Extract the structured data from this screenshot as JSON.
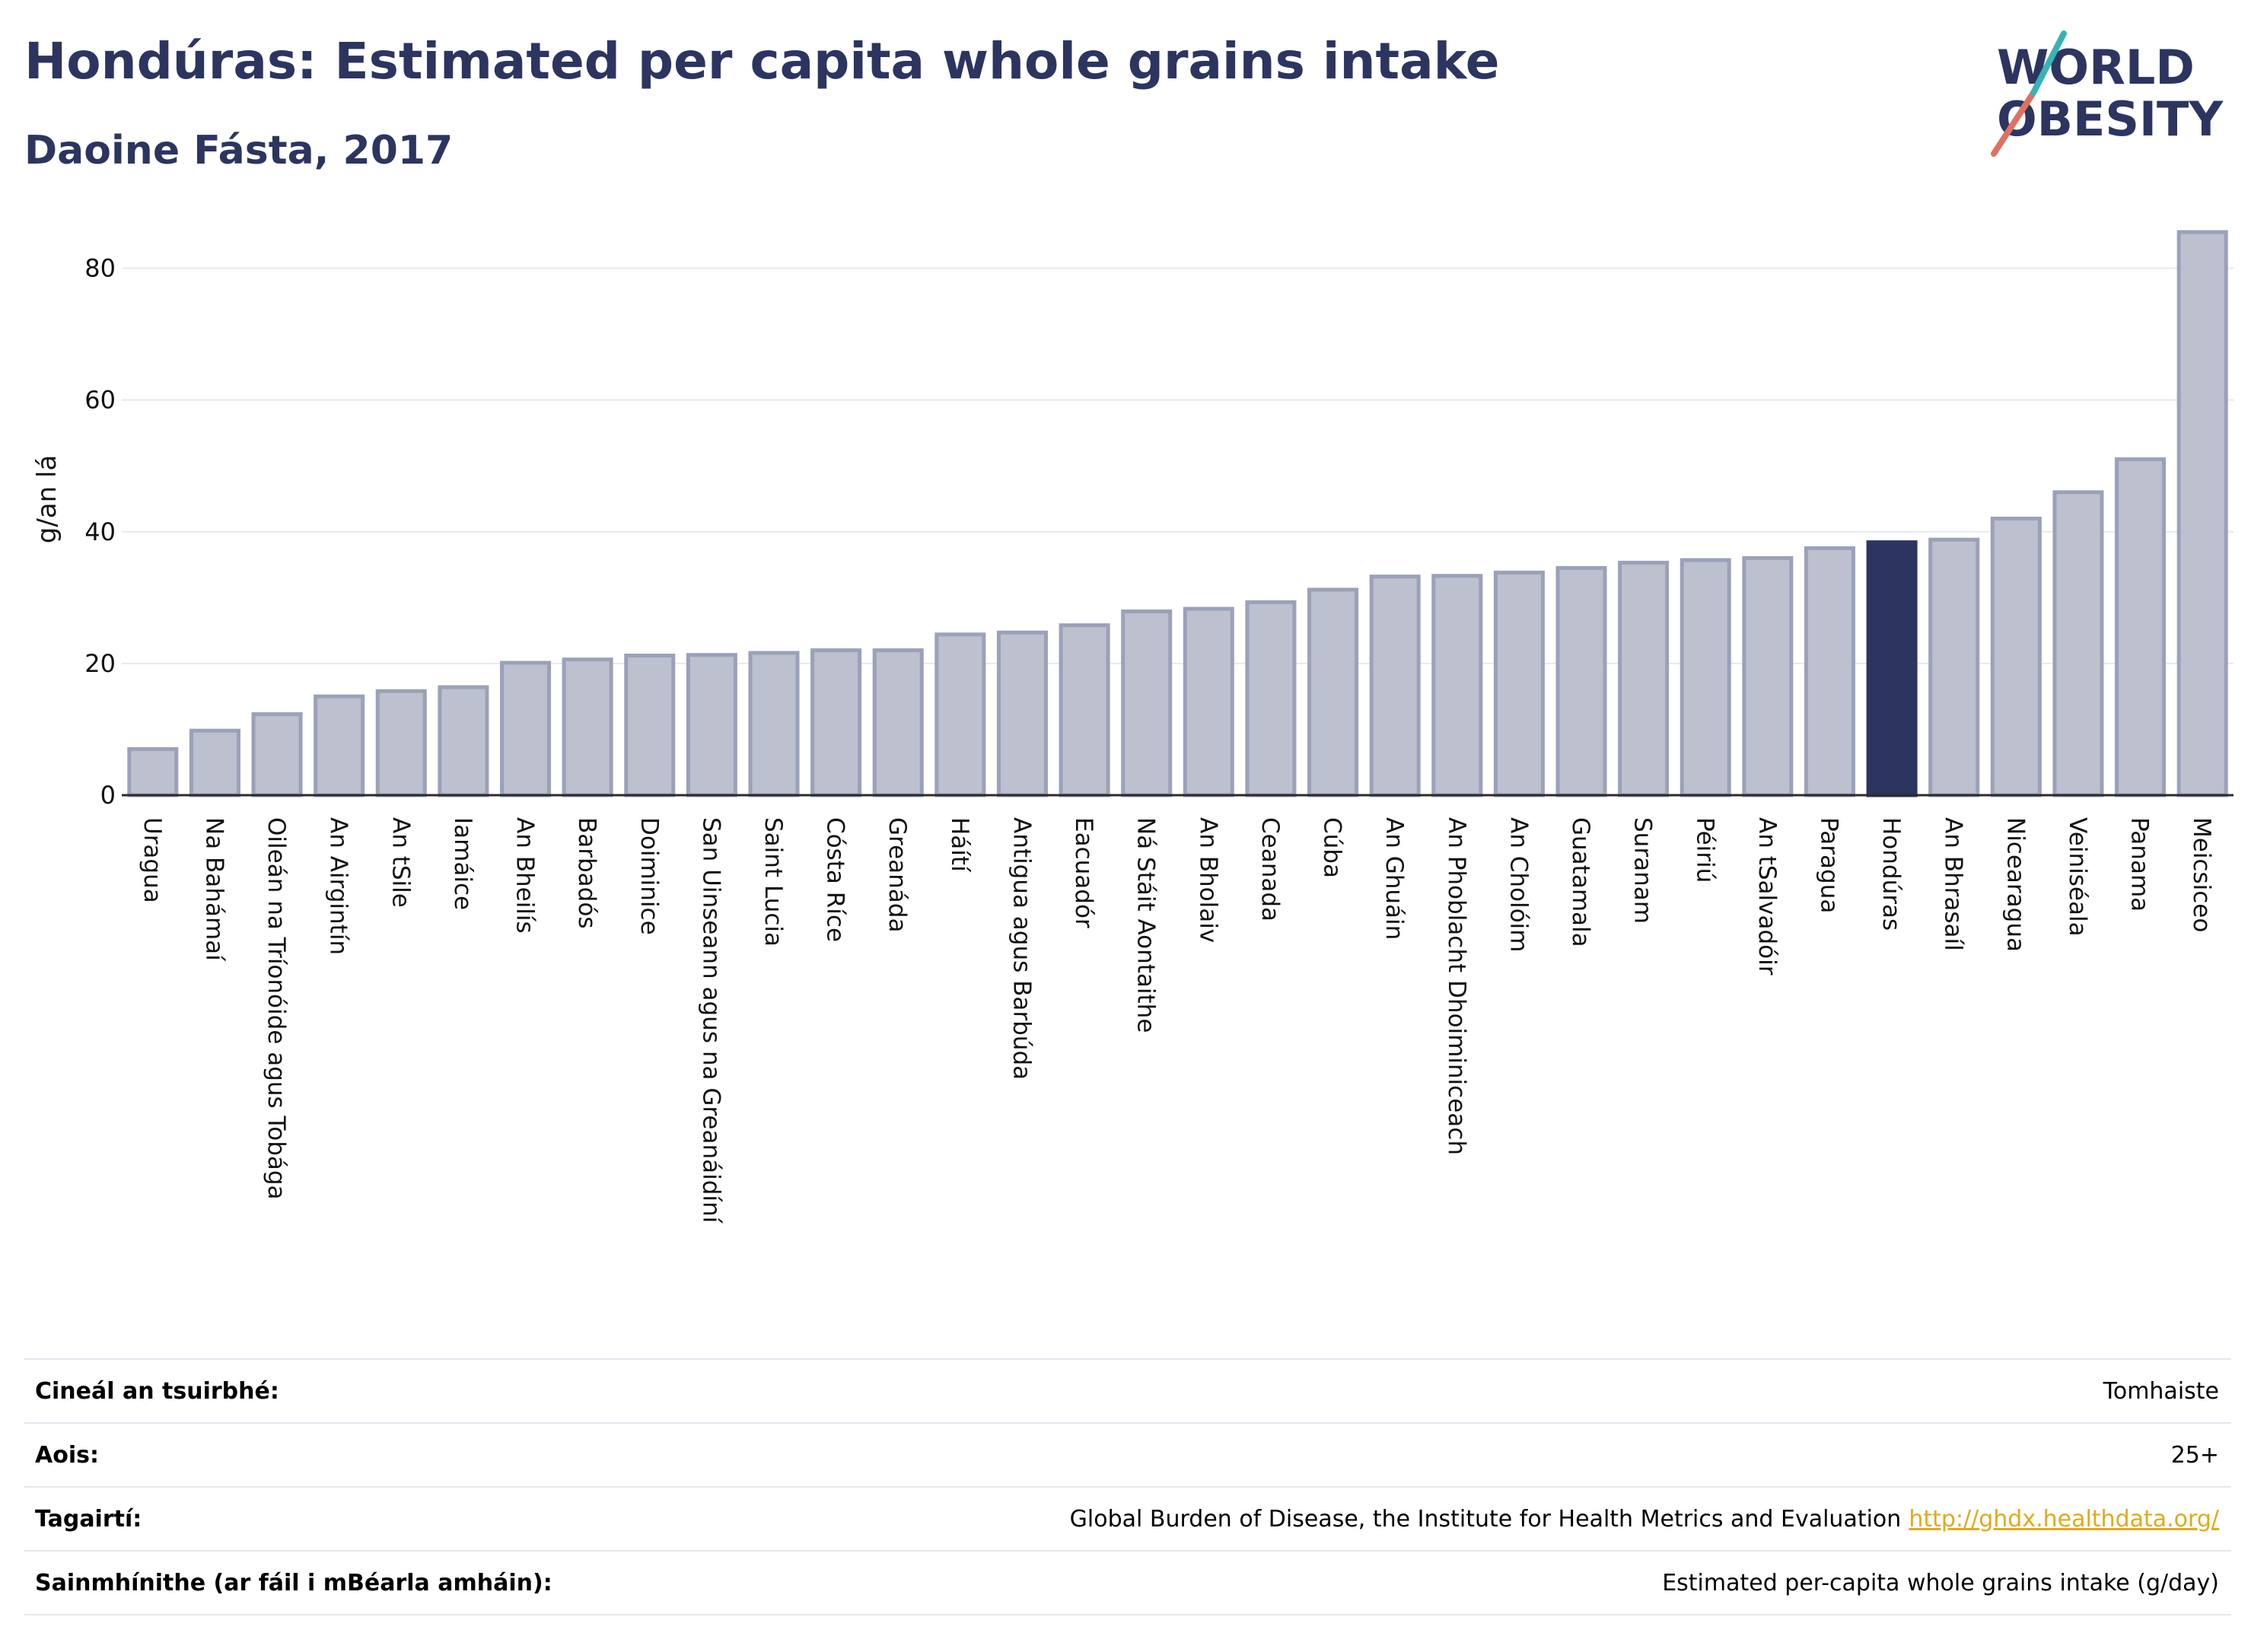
{
  "header": {
    "title": "Hondúras: Estimated per capita whole grains intake",
    "subtitle": "Daoine Fásta, 2017"
  },
  "logo": {
    "line1": "WORLD",
    "line2": "OBESITY"
  },
  "colors": {
    "bar": "#bcc0cf",
    "bar_border": "#9aa1b9",
    "highlight": "#2c3560",
    "grid": "#e6e9ef"
  },
  "chart_data": {
    "type": "bar",
    "title": "Hondúras: Estimated per capita whole grains intake",
    "subtitle": "Daoine Fásta, 2017",
    "ylabel": "g/an lá",
    "xlabel": "",
    "ylim": [
      0,
      90
    ],
    "yticks": [
      0,
      20,
      40,
      60,
      80
    ],
    "grid": true,
    "highlight": "Hondúras",
    "categories": [
      "Uragua",
      "Na Bahámaí",
      "Oileán na Tríonóide agus Tobága",
      "An Airgintín",
      "An tSile",
      "Iamáice",
      "An Bheilís",
      "Barbadós",
      "Doiminice",
      "San Uinseann agus na Greanáidíní",
      "Saint Lucia",
      "Cósta Ríce",
      "Greanáda",
      "Háítí",
      "Antigua agus Barbúda",
      "Eacuadór",
      "Ná Stáit Aontaithe",
      "An Bholaiv",
      "Ceanada",
      "Cúba",
      "An Ghuáin",
      "An Phoblacht Dhoiminiceach",
      "An Cholóim",
      "Guatamala",
      "Suranam",
      "Péiriú",
      "An tSalvadóir",
      "Paragua",
      "Hondúras",
      "An Bhrasaíl",
      "Nicearagua",
      "Veiniséala",
      "Panama",
      "Meicsiceo"
    ],
    "values": [
      7,
      9.8,
      12.3,
      15,
      15.8,
      16.4,
      20.1,
      20.6,
      21.2,
      21.3,
      21.6,
      22,
      22,
      24.4,
      24.7,
      25.8,
      27.9,
      28.3,
      29.3,
      31.2,
      33.2,
      33.3,
      33.8,
      34.5,
      35.3,
      35.7,
      36,
      37.5,
      38.4,
      38.8,
      42,
      46,
      51,
      85.5
    ]
  },
  "meta": [
    {
      "key": "Cineál an tsuirbhé:",
      "value": "Tomhaiste"
    },
    {
      "key": "Aois:",
      "value": "25+"
    },
    {
      "key": "Tagairtí:",
      "value": "Global Burden of Disease, the Institute for Health Metrics and Evaluation",
      "link": "http://ghdx.healthdata.org/"
    },
    {
      "key": "Sainmhínithe (ar fáil i mBéarla amháin):",
      "value": "Estimated per-capita whole grains intake (g/day)"
    }
  ]
}
